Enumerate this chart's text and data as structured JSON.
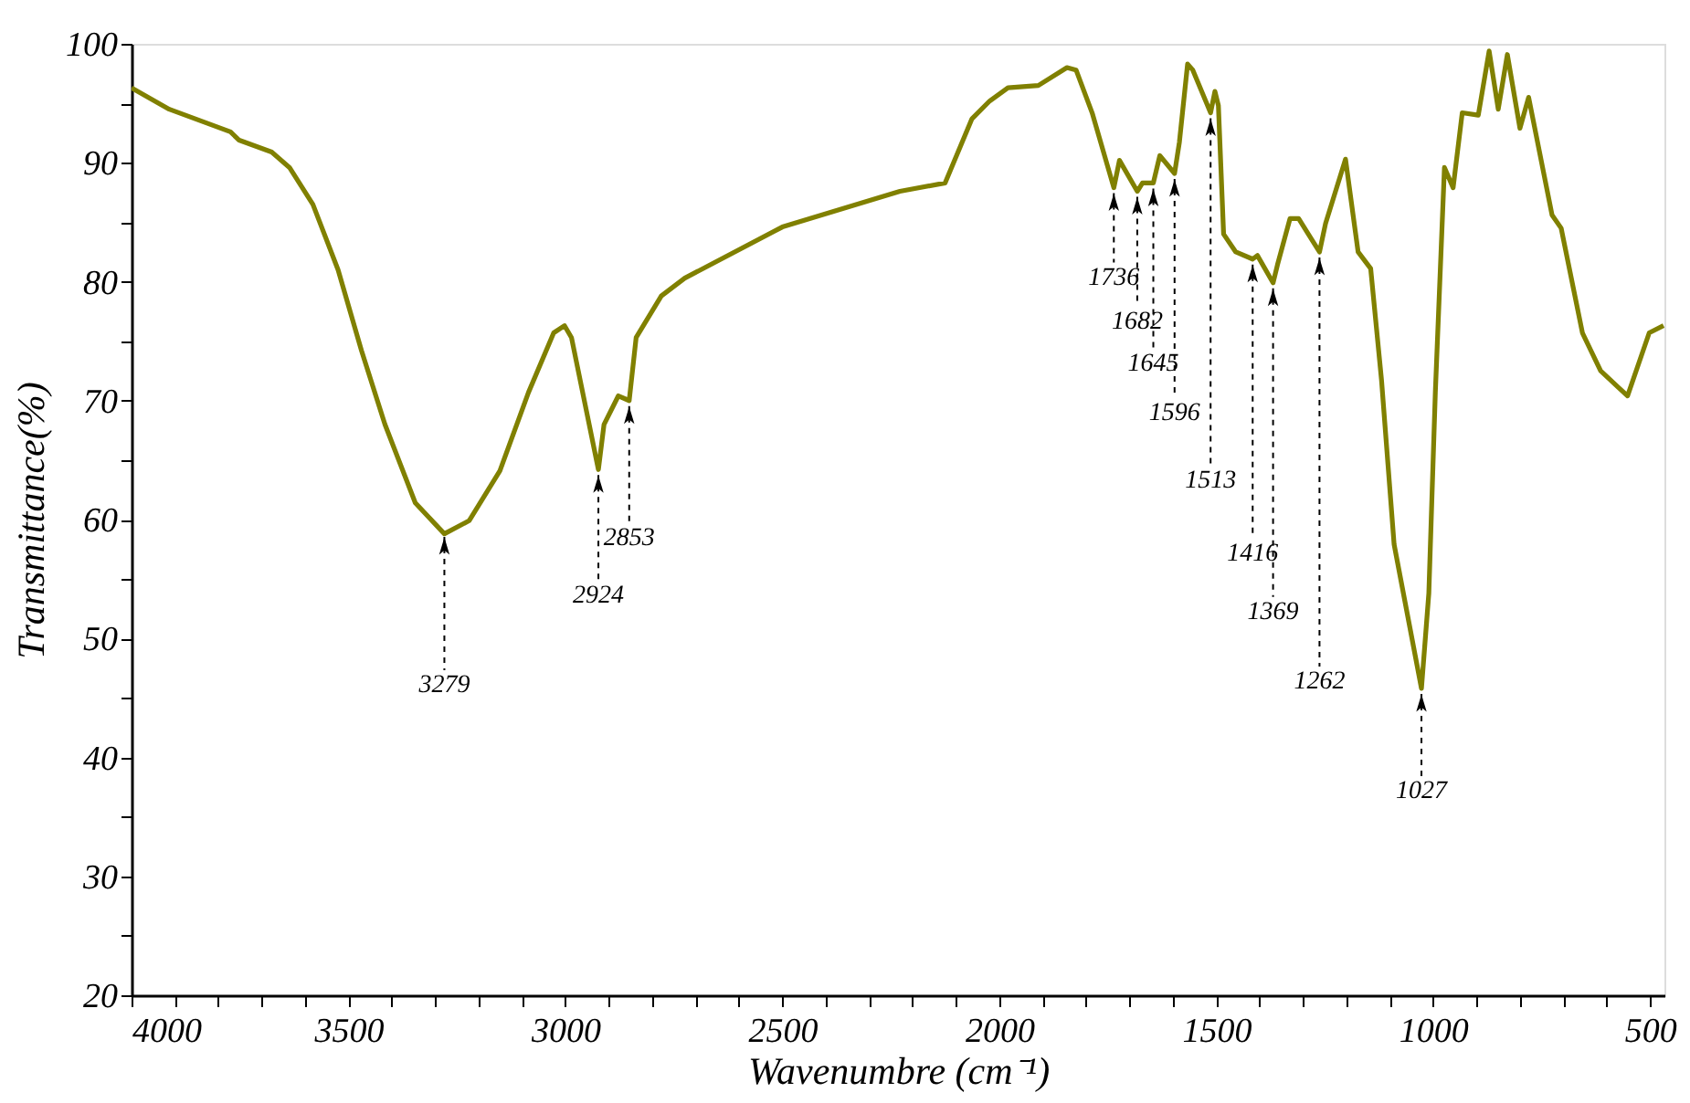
{
  "chart_data": {
    "type": "line",
    "xlabel": "Wavenumbre (cm⁻¹)",
    "ylabel": "Transmittance(%)",
    "xlim": [
      4000,
      467
    ],
    "ylim": [
      20,
      100
    ],
    "xticks": [
      4000,
      {
        "value": 3900,
        "label": null
      },
      {
        "value": 3800,
        "label": null
      },
      {
        "value": 3700,
        "label": null
      },
      {
        "value": 3600,
        "label": null
      },
      3500,
      {
        "value": 3400,
        "label": null
      },
      {
        "value": 3300,
        "label": null
      },
      {
        "value": 3200,
        "label": null
      },
      {
        "value": 3100,
        "label": null
      },
      3000,
      {
        "value": 2900,
        "label": null
      },
      {
        "value": 2800,
        "label": null
      },
      {
        "value": 2700,
        "label": null
      },
      {
        "value": 2600,
        "label": null
      },
      2500,
      {
        "value": 2400,
        "label": null
      },
      {
        "value": 2300,
        "label": null
      },
      {
        "value": 2200,
        "label": null
      },
      {
        "value": 2100,
        "label": null
      },
      2000,
      {
        "value": 1900,
        "label": null
      },
      {
        "value": 1800,
        "label": null
      },
      {
        "value": 1700,
        "label": null
      },
      {
        "value": 1600,
        "label": null
      },
      1500,
      {
        "value": 1400,
        "label": null
      },
      {
        "value": 1300,
        "label": null
      },
      {
        "value": 1200,
        "label": null
      },
      {
        "value": 1100,
        "label": null
      },
      1000,
      {
        "value": 900,
        "label": null
      },
      {
        "value": 800,
        "label": null
      },
      {
        "value": 700,
        "label": null
      },
      {
        "value": 600,
        "label": null
      },
      500
    ],
    "yticks": [
      20,
      {
        "value": 25,
        "label": null
      },
      30,
      {
        "value": 35,
        "label": null
      },
      40,
      {
        "value": 45,
        "label": null
      },
      50,
      {
        "value": 55,
        "label": null
      },
      60,
      {
        "value": 65,
        "label": null
      },
      70,
      {
        "value": 75,
        "label": null
      },
      80,
      {
        "value": 85,
        "label": null
      },
      90,
      {
        "value": 95,
        "label": null
      },
      100
    ],
    "grid": false,
    "marker": "none",
    "line_style": "solid",
    "series": [
      {
        "color": "#808000",
        "x": [
          4000,
          3913,
          3772,
          3752,
          3677,
          3636,
          3582,
          3524,
          3470,
          3416,
          3346,
          3279,
          3222,
          3151,
          3085,
          3027,
          3002,
          2986,
          2924,
          2911,
          2878,
          2853,
          2837,
          2779,
          2725,
          2500,
          2229,
          2125,
          2063,
          2022,
          1980,
          1910,
          1844,
          1823,
          1786,
          1736,
          1723,
          1682,
          1670,
          1645,
          1630,
          1596,
          1585,
          1566,
          1554,
          1513,
          1503,
          1495,
          1483,
          1455,
          1416,
          1405,
          1369,
          1359,
          1330,
          1310,
          1262,
          1248,
          1202,
          1173,
          1144,
          1119,
          1090,
          1027,
          1010,
          995,
          974,
          954,
          933,
          896,
          871,
          850,
          829,
          800,
          780,
          726,
          705,
          656,
          614,
          573,
          552,
          502,
          469
        ],
        "values": [
          96.3,
          94.5,
          92.6,
          91.9,
          90.9,
          89.6,
          86.5,
          81.0,
          74.2,
          68.0,
          61.4,
          58.8,
          59.9,
          64.1,
          70.7,
          75.7,
          76.3,
          75.3,
          64.2,
          68.0,
          70.4,
          70.0,
          75.3,
          78.8,
          80.3,
          84.6,
          87.6,
          88.3,
          93.7,
          95.2,
          96.3,
          96.5,
          98.0,
          97.8,
          94.2,
          87.9,
          90.2,
          87.6,
          88.3,
          88.3,
          90.6,
          89.1,
          91.7,
          98.3,
          97.8,
          94.2,
          96.0,
          94.8,
          84.0,
          82.5,
          81.9,
          82.2,
          79.9,
          81.4,
          85.3,
          85.3,
          82.5,
          84.9,
          90.3,
          82.5,
          81.1,
          71.7,
          57.9,
          45.8,
          53.8,
          70.7,
          89.6,
          87.9,
          94.2,
          94.0,
          99.4,
          94.5,
          99.1,
          92.9,
          95.5,
          85.6,
          84.5,
          75.7,
          72.5,
          71.1,
          70.4,
          75.7,
          76.3
        ]
      }
    ],
    "annotations": [
      {
        "text": "3279",
        "x": 3279,
        "y": 59
      },
      {
        "text": "2924",
        "x": 2924,
        "y": 64.2
      },
      {
        "text": "2853",
        "x": 2853,
        "y": 70
      },
      {
        "text": "1736",
        "x": 1736,
        "y": 87.9
      },
      {
        "text": "1682",
        "x": 1682,
        "y": 87.6
      },
      {
        "text": "1645",
        "x": 1645,
        "y": 88.3
      },
      {
        "text": "1596",
        "x": 1596,
        "y": 89.1
      },
      {
        "text": "1513",
        "x": 1513,
        "y": 94.2
      },
      {
        "text": "1416",
        "x": 1416,
        "y": 81.9
      },
      {
        "text": "1369",
        "x": 1369,
        "y": 79.9
      },
      {
        "text": "1262",
        "x": 1262,
        "y": 82.5
      },
      {
        "text": "1027",
        "x": 1027,
        "y": 45.8
      }
    ]
  }
}
